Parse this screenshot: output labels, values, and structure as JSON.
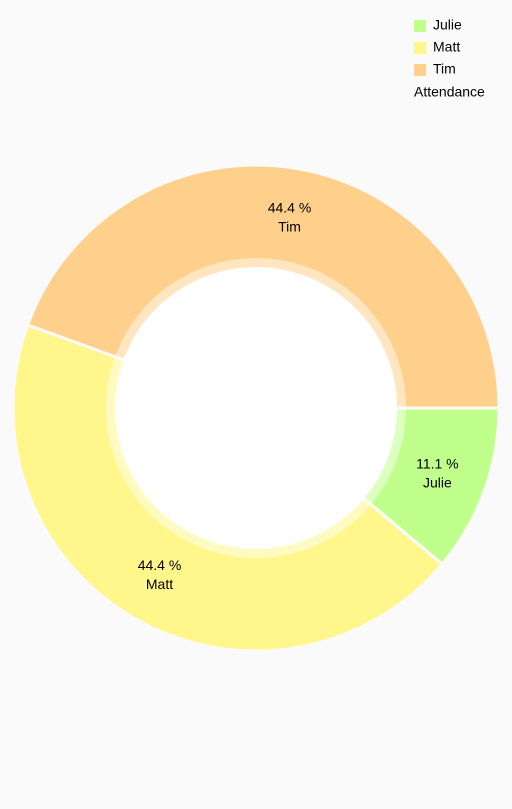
{
  "chart_data": {
    "type": "pie",
    "categories": [
      "Julie",
      "Matt",
      "Tim"
    ],
    "values": [
      11.1,
      44.4,
      44.4
    ],
    "value_labels": [
      "11.1 %",
      "44.4 %",
      "44.4 %"
    ],
    "colors": [
      "#c1ff8c",
      "#fff78c",
      "#ffd08c"
    ],
    "legend_title": "Attendance",
    "legend": "top-right",
    "donut": true
  }
}
